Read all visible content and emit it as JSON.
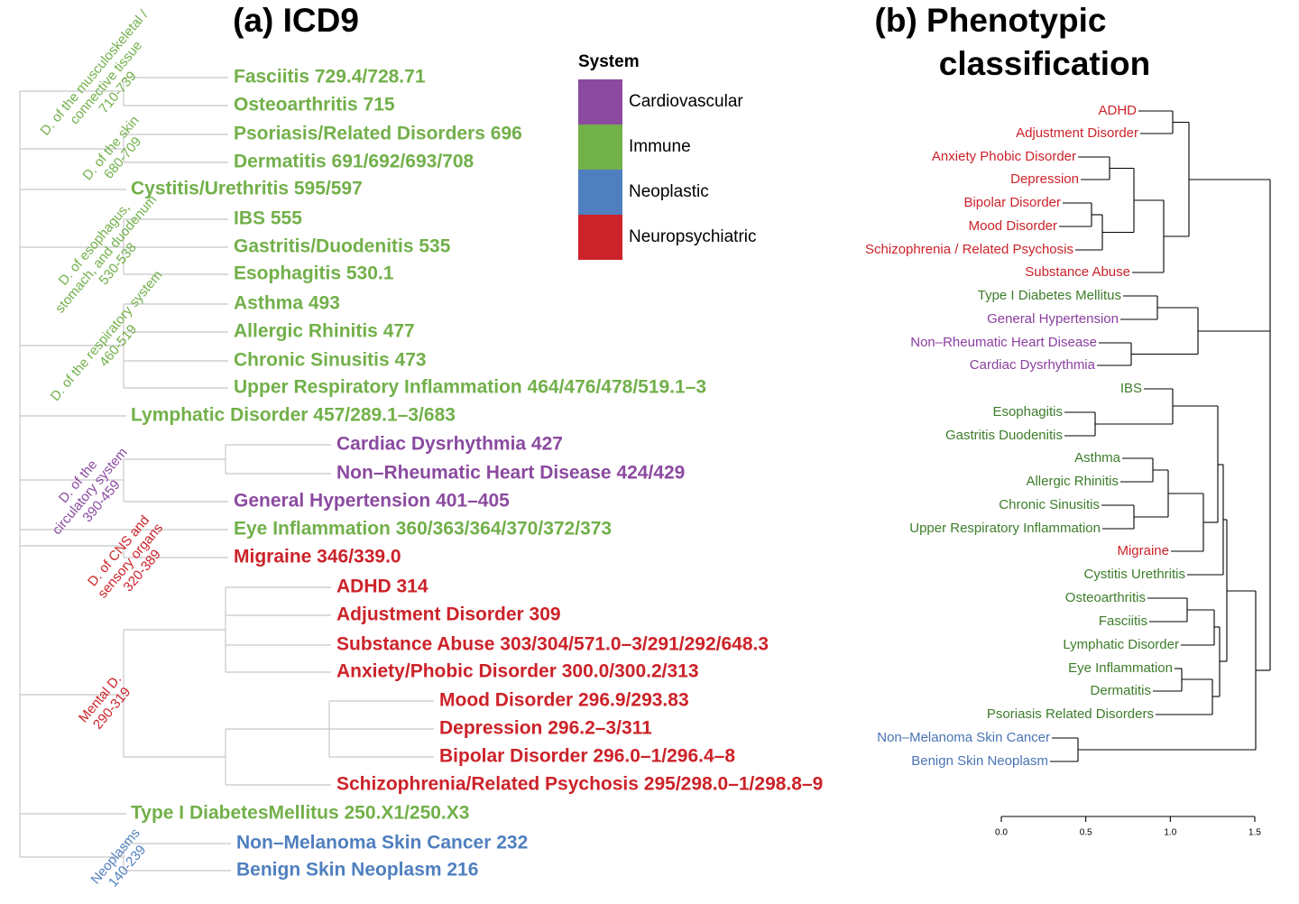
{
  "panel_a": {
    "title": "(a) ICD9",
    "legend": {
      "title": "System",
      "items": [
        {
          "label": "Cardiovascular",
          "color": "#8b4aa0"
        },
        {
          "label": "Immune",
          "color": "#72b04a"
        },
        {
          "label": "Neoplastic",
          "color": "#4f7fbf"
        },
        {
          "label": "Neuropsychiatric",
          "color": "#cc2229"
        }
      ]
    },
    "groups": [
      {
        "lines": [
          "D. of the musculoskeletal /",
          "connective tissue",
          "710-739"
        ],
        "color": "#72b04a"
      },
      {
        "lines": [
          "D. of the skin",
          "680-709"
        ],
        "color": "#72b04a"
      },
      {
        "lines": [
          "D. of esophagus,",
          "stomach, and duodenum",
          "530-538"
        ],
        "color": "#72b04a"
      },
      {
        "lines": [
          "D. of the respiratory system",
          "460-519"
        ],
        "color": "#72b04a"
      },
      {
        "lines": [
          "D. of the",
          "circulatory system",
          "390-459"
        ],
        "color": "#8b4aa0"
      },
      {
        "lines": [
          "D. of CNS and",
          "sensory organs",
          "320-389"
        ],
        "color": "#cc2229"
      },
      {
        "lines": [
          "Mental D.",
          "290-319"
        ],
        "color": "#cc2229"
      },
      {
        "lines": [
          "Neoplasms",
          "140-239"
        ],
        "color": "#4f7fbf"
      }
    ],
    "leaves": [
      {
        "text": "Fasciitis  729.4/728.71",
        "color": "#72b04a"
      },
      {
        "text": "Osteoarthritis 715",
        "color": "#72b04a"
      },
      {
        "text": "Psoriasis/Related Disorders  696",
        "color": "#72b04a"
      },
      {
        "text": "Dermatitis  691/692/693/708",
        "color": "#72b04a"
      },
      {
        "text": "Cystitis/Urethritis 595/597",
        "color": "#72b04a"
      },
      {
        "text": "IBS 555",
        "color": "#72b04a"
      },
      {
        "text": "Gastritis/Duodenitis 535",
        "color": "#72b04a"
      },
      {
        "text": "Esophagitis 530.1",
        "color": "#72b04a"
      },
      {
        "text": "Asthma 493",
        "color": "#72b04a"
      },
      {
        "text": "Allergic Rhinitis 477",
        "color": "#72b04a"
      },
      {
        "text": "Chronic Sinusitis 473",
        "color": "#72b04a"
      },
      {
        "text": "Upper Respiratory Inflammation 464/476/478/519.1–3",
        "color": "#72b04a"
      },
      {
        "text": "Lymphatic Disorder 457/289.1–3/683",
        "color": "#72b04a"
      },
      {
        "text": "Cardiac Dysrhythmia 427",
        "color": "#8b4aa0"
      },
      {
        "text": "Non–Rheumatic Heart Disease 424/429",
        "color": "#8b4aa0"
      },
      {
        "text": "General Hypertension 401–405",
        "color": "#8b4aa0"
      },
      {
        "text": "Eye Inflammation 360/363/364/370/372/373",
        "color": "#72b04a"
      },
      {
        "text": "Migraine 346/339.0",
        "color": "#cc2229"
      },
      {
        "text": "ADHD 314",
        "color": "#cc2229"
      },
      {
        "text": "Adjustment Disorder 309",
        "color": "#cc2229"
      },
      {
        "text": "Substance Abuse 303/304/571.0–3/291/292/648.3",
        "color": "#cc2229"
      },
      {
        "text": "Anxiety/Phobic Disorder 300.0/300.2/313",
        "color": "#cc2229"
      },
      {
        "text": "Mood Disorder 296.9/293.83",
        "color": "#cc2229"
      },
      {
        "text": "Depression 296.2–3/311",
        "color": "#cc2229"
      },
      {
        "text": "Bipolar Disorder 296.0–1/296.4–8",
        "color": "#cc2229"
      },
      {
        "text": "Schizophrenia/Related Psychosis 295/298.0–1/298.8–9",
        "color": "#cc2229"
      },
      {
        "text": "Type I DiabetesMellitus 250.X1/250.X3",
        "color": "#72b04a"
      },
      {
        "text": "Non–Melanoma Skin Cancer 232",
        "color": "#4f7fbf"
      },
      {
        "text": "Benign Skin Neoplasm 216",
        "color": "#4f7fbf"
      }
    ]
  },
  "panel_b": {
    "title": [
      "(b) Phenotypic",
      "classification"
    ],
    "leaves": [
      {
        "text": "ADHD",
        "color": "#cc2229"
      },
      {
        "text": "Adjustment Disorder",
        "color": "#cc2229"
      },
      {
        "text": "Anxiety Phobic Disorder",
        "color": "#cc2229"
      },
      {
        "text": "Depression",
        "color": "#cc2229"
      },
      {
        "text": "Bipolar Disorder",
        "color": "#cc2229"
      },
      {
        "text": "Mood Disorder",
        "color": "#cc2229"
      },
      {
        "text": "Schizophrenia / Related Psychosis",
        "color": "#cc2229"
      },
      {
        "text": "Substance Abuse",
        "color": "#cc2229"
      },
      {
        "text": "Type I Diabetes Mellitus",
        "color": "#3d7d2b"
      },
      {
        "text": "General Hypertension",
        "color": "#8b3f9f"
      },
      {
        "text": "Non–Rheumatic Heart Disease",
        "color": "#8b3f9f"
      },
      {
        "text": "Cardiac Dysrhythmia",
        "color": "#8b3f9f"
      },
      {
        "text": "IBS",
        "color": "#3d7d2b"
      },
      {
        "text": "Esophagitis",
        "color": "#3d7d2b"
      },
      {
        "text": "Gastritis Duodenitis",
        "color": "#3d7d2b"
      },
      {
        "text": "Asthma",
        "color": "#3d7d2b"
      },
      {
        "text": "Allergic Rhinitis",
        "color": "#3d7d2b"
      },
      {
        "text": "Chronic Sinusitis",
        "color": "#3d7d2b"
      },
      {
        "text": "Upper Respiratory Inflammation",
        "color": "#3d7d2b"
      },
      {
        "text": "Migraine",
        "color": "#cc2229"
      },
      {
        "text": "Cystitis Urethritis",
        "color": "#3d7d2b"
      },
      {
        "text": "Osteoarthritis",
        "color": "#3d7d2b"
      },
      {
        "text": "Fasciitis",
        "color": "#3d7d2b"
      },
      {
        "text": "Lymphatic Disorder",
        "color": "#3d7d2b"
      },
      {
        "text": "Eye Inflammation",
        "color": "#3d7d2b"
      },
      {
        "text": "Dermatitis",
        "color": "#3d7d2b"
      },
      {
        "text": "Psoriasis Related Disorders",
        "color": "#3d7d2b"
      },
      {
        "text": "Non–Melanoma Skin Cancer",
        "color": "#4a74b4"
      },
      {
        "text": "Benign Skin Neoplasm",
        "color": "#4a74b4"
      }
    ],
    "axis_ticks": [
      "0.0",
      "0.5",
      "1.0",
      "1.5"
    ]
  }
}
